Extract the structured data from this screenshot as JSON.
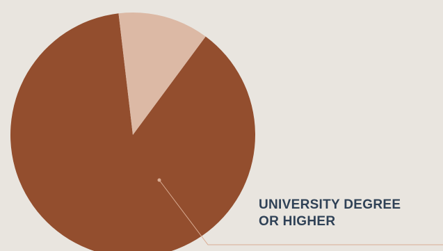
{
  "colors": {
    "background": "#e9e5df",
    "label_text": "#2f4156",
    "leader_line": "#d9ac93"
  },
  "chart_data": {
    "type": "pie",
    "categories": [
      "University degree or higher",
      ""
    ],
    "values": [
      88,
      12
    ],
    "colors": [
      "#934e2e",
      "#dcb9a5"
    ],
    "start_angle_deg": -53.5,
    "annotation": {
      "text_line_1": "UNIVERSITY DEGREE",
      "text_line_2": "OR HIGHER",
      "points_to_slice": 0
    },
    "title": "",
    "legend": "none"
  }
}
